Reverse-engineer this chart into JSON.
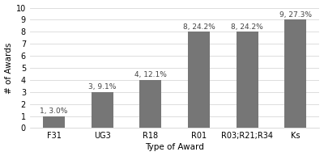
{
  "categories": [
    "F31",
    "UG3",
    "R18",
    "R01",
    "R03;R21;R34",
    "Ks"
  ],
  "values": [
    1,
    3,
    4,
    8,
    8,
    9
  ],
  "labels": [
    "1, 3.0%",
    "3, 9.1%",
    "4, 12.1%",
    "8, 24.2%",
    "8, 24.2%",
    "9, 27.3%"
  ],
  "bar_color": "#767676",
  "xlabel": "Type of Award",
  "ylabel": "# of Awards",
  "ylim": [
    0,
    10
  ],
  "yticks": [
    0,
    1,
    2,
    3,
    4,
    5,
    6,
    7,
    8,
    9,
    10
  ],
  "background_color": "#ffffff",
  "label_fontsize": 6.5,
  "axis_label_fontsize": 7.5,
  "tick_fontsize": 7,
  "bar_width": 0.45,
  "grid_color": "#d8d8d8",
  "grid_linewidth": 0.6
}
